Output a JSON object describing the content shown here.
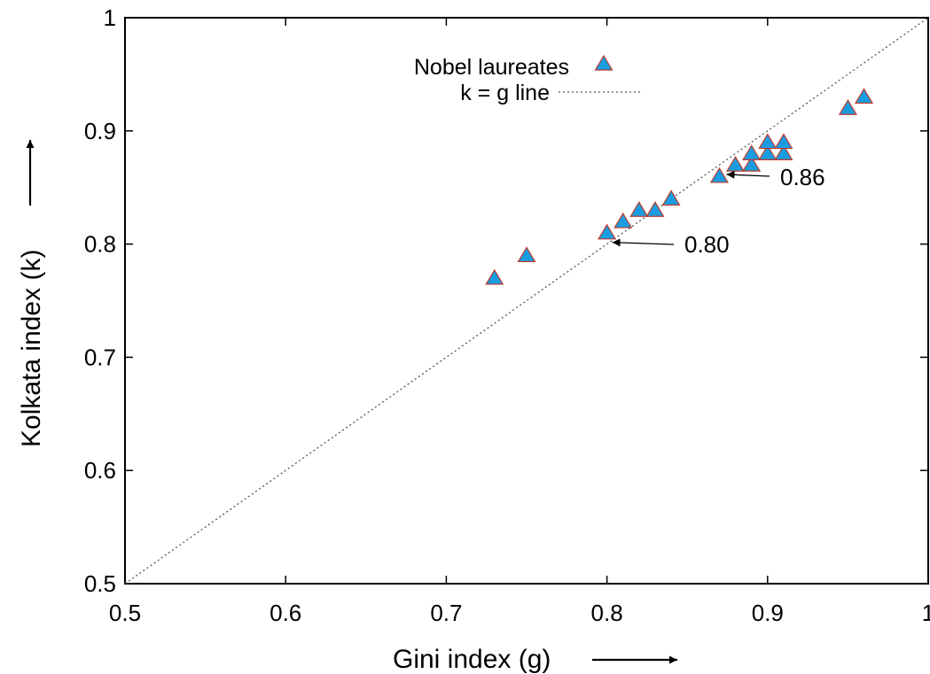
{
  "chart_data": {
    "type": "scatter",
    "xlabel": "Gini index (g)",
    "ylabel": "Kolkata index (k)",
    "xlim": [
      0.5,
      1.0
    ],
    "ylim": [
      0.5,
      1.0
    ],
    "x_ticks": [
      0.5,
      0.6,
      0.7,
      0.8,
      0.9,
      1.0
    ],
    "x_tick_labels": [
      "0.5",
      "0.6",
      "0.7",
      "0.8",
      "0.9",
      "1"
    ],
    "y_ticks": [
      0.5,
      0.6,
      0.7,
      0.8,
      0.9,
      1.0
    ],
    "y_tick_labels": [
      "0.5",
      "0.6",
      "0.7",
      "0.8",
      "0.9",
      "1"
    ],
    "grid": false,
    "legend": {
      "placement": "top-center",
      "entries": [
        {
          "label": "Nobel laureates",
          "marker": "triangle"
        },
        {
          "label": "k = g line",
          "line": "dotted"
        }
      ]
    },
    "series": [
      {
        "name": "Nobel laureates",
        "marker": "triangle",
        "color": "#1a9de0",
        "edge_color": "#c0392b",
        "points": [
          {
            "x": 0.73,
            "y": 0.77
          },
          {
            "x": 0.75,
            "y": 0.79
          },
          {
            "x": 0.8,
            "y": 0.81
          },
          {
            "x": 0.81,
            "y": 0.82
          },
          {
            "x": 0.82,
            "y": 0.83
          },
          {
            "x": 0.83,
            "y": 0.83
          },
          {
            "x": 0.84,
            "y": 0.84
          },
          {
            "x": 0.87,
            "y": 0.86
          },
          {
            "x": 0.88,
            "y": 0.87
          },
          {
            "x": 0.89,
            "y": 0.87
          },
          {
            "x": 0.89,
            "y": 0.88
          },
          {
            "x": 0.9,
            "y": 0.88
          },
          {
            "x": 0.9,
            "y": 0.89
          },
          {
            "x": 0.91,
            "y": 0.88
          },
          {
            "x": 0.91,
            "y": 0.89
          },
          {
            "x": 0.95,
            "y": 0.92
          },
          {
            "x": 0.96,
            "y": 0.93
          }
        ]
      },
      {
        "name": "k = g line",
        "line": "dotted",
        "color": "#555555",
        "points": [
          {
            "x": 0.5,
            "y": 0.5
          },
          {
            "x": 1.0,
            "y": 1.0
          }
        ]
      }
    ],
    "annotations": [
      {
        "text": "0.86",
        "x": 0.87,
        "y": 0.86
      },
      {
        "text": "0.80",
        "x": 0.8,
        "y": 0.8
      }
    ]
  }
}
